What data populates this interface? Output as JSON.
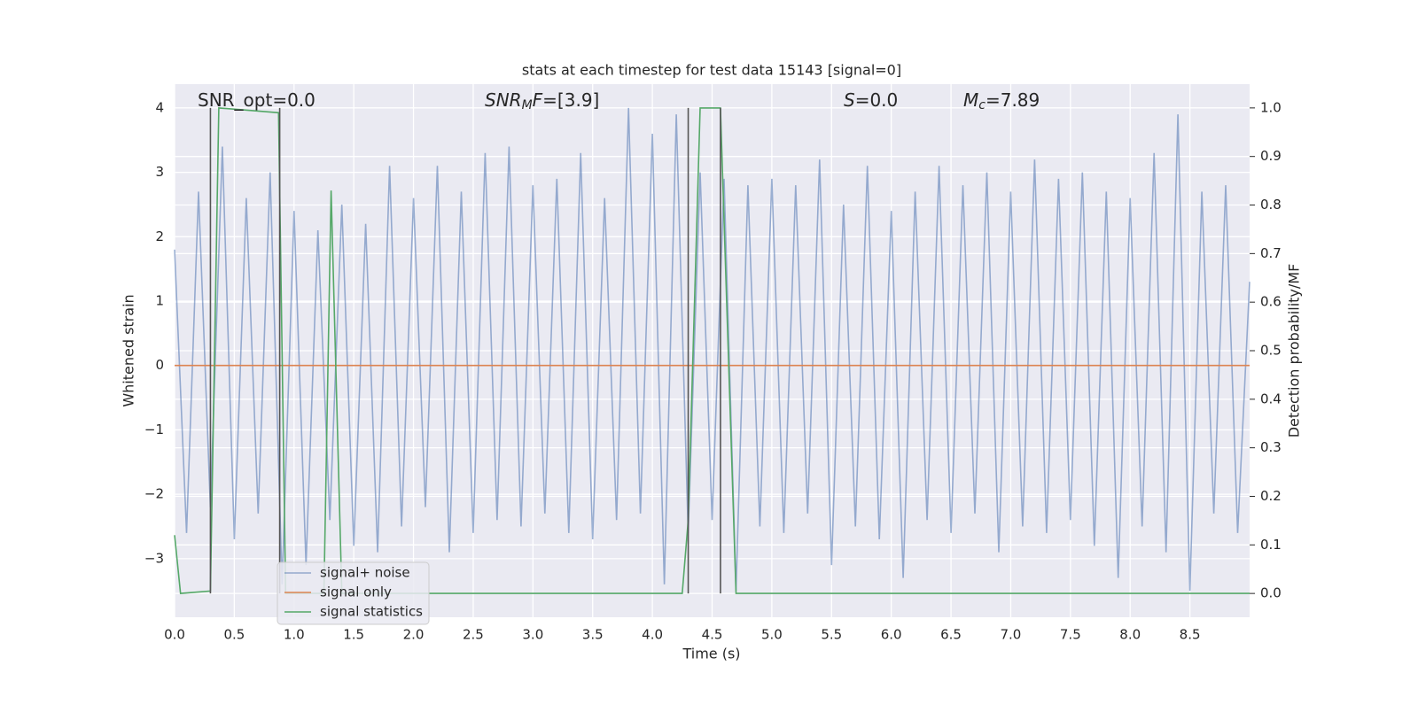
{
  "chart_data": {
    "type": "line",
    "title": "stats at each timestep for test data 15143 [signal=0]",
    "x_label": "Time (s)",
    "y_label": "Whitened strain",
    "y2_label": "Detection probability/MF",
    "xlim": [
      0,
      9.0
    ],
    "ylim": [
      -3.91,
      4.37
    ],
    "y2lim": [
      -0.049,
      1.049
    ],
    "grid": true,
    "legend": "lower left",
    "xticks": [
      {
        "value": 0,
        "label": "0.0"
      },
      0.5,
      {
        "value": 1,
        "label": "1.0"
      },
      1.5,
      {
        "value": 2,
        "label": "2.0"
      },
      2.5,
      {
        "value": 3,
        "label": "3.0"
      },
      3.5,
      {
        "value": 4,
        "label": "4.0"
      },
      4.5,
      {
        "value": 5,
        "label": "5.0"
      },
      5.5,
      {
        "value": 6,
        "label": "6.0"
      },
      6.5,
      {
        "value": 7,
        "label": "7.0"
      },
      7.5,
      {
        "value": 8,
        "label": "8.0"
      },
      8.5
    ],
    "yticks": [
      {
        "value": -3,
        "label": "−3"
      },
      {
        "value": -2,
        "label": "−2"
      },
      {
        "value": -1,
        "label": "−1"
      },
      0,
      1,
      2,
      3,
      4
    ],
    "y2ticks": [
      {
        "value": 0,
        "label": "0.0"
      },
      0.1,
      0.2,
      0.3,
      0.4,
      0.5,
      0.6,
      0.7,
      0.8,
      0.9,
      {
        "value": 1,
        "label": "1.0"
      }
    ],
    "annotations": [
      [
        {
          "text": "SNR_opt=0.0",
          "style": "normal"
        }
      ],
      [
        {
          "text": "SNR",
          "style": "italic"
        },
        {
          "text": "M",
          "style": "sub"
        },
        {
          "text": "F",
          "style": "italic"
        },
        {
          "text": "=[3.9]",
          "style": "normal"
        }
      ],
      [
        {
          "text": "S",
          "style": "italic"
        },
        {
          "text": "=0.0",
          "style": "normal"
        }
      ],
      [
        {
          "text": "M",
          "style": "italic"
        },
        {
          "text": "c",
          "style": "sub"
        },
        {
          "text": "=7.89",
          "style": "normal"
        }
      ]
    ],
    "vlines": [
      0.3,
      0.88,
      4.3,
      4.57
    ],
    "vline_color": "#555555",
    "series": [
      {
        "name": "signal+ noise",
        "color": "#4c72b0",
        "opacity": 0.55,
        "x": [
          0,
          0.1,
          0.2,
          0.3,
          0.4,
          0.5,
          0.6,
          0.7,
          0.8,
          0.9,
          1,
          1.1,
          1.2,
          1.3,
          1.4,
          1.5,
          1.6,
          1.7,
          1.8,
          1.9,
          2,
          2.1,
          2.2,
          2.3,
          2.4,
          2.5,
          2.6,
          2.7,
          2.8,
          2.9,
          3,
          3.1,
          3.2,
          3.3,
          3.4,
          3.5,
          3.6,
          3.7,
          3.8,
          3.9,
          4,
          4.1,
          4.2,
          4.3,
          4.4,
          4.5,
          4.6,
          4.7,
          4.8,
          4.9,
          5,
          5.1,
          5.2,
          5.3,
          5.4,
          5.5,
          5.6,
          5.7,
          5.8,
          5.9,
          6,
          6.1,
          6.2,
          6.3,
          6.4,
          6.5,
          6.6,
          6.7,
          6.8,
          6.9,
          7,
          7.1,
          7.2,
          7.3,
          7.4,
          7.5,
          7.6,
          7.7,
          7.8,
          7.9,
          8,
          8.1,
          8.2,
          8.3,
          8.4,
          8.5,
          8.6,
          8.7,
          8.8,
          8.9,
          9.0
        ],
        "values": [
          1.8,
          -2.6,
          2.7,
          -2.2,
          3.4,
          -2.7,
          2.6,
          -2.3,
          3.0,
          -3.4,
          2.4,
          -3.1,
          2.1,
          -2.4,
          2.5,
          -2.8,
          2.2,
          -2.9,
          3.1,
          -2.5,
          2.6,
          -2.2,
          3.1,
          -2.9,
          2.7,
          -2.6,
          3.3,
          -2.4,
          3.4,
          -2.5,
          2.8,
          -2.3,
          2.9,
          -2.6,
          3.3,
          -2.7,
          2.6,
          -2.4,
          4.0,
          -2.3,
          3.6,
          -3.4,
          3.9,
          -2.6,
          3.0,
          -2.4,
          2.9,
          -3.5,
          2.8,
          -2.5,
          2.9,
          -2.6,
          2.8,
          -2.3,
          3.2,
          -3.1,
          2.5,
          -2.5,
          3.1,
          -2.7,
          2.4,
          -3.3,
          2.7,
          -2.4,
          3.1,
          -2.6,
          2.8,
          -2.3,
          3.0,
          -2.9,
          2.7,
          -2.5,
          3.2,
          -2.6,
          2.9,
          -2.4,
          3.0,
          -2.8,
          2.7,
          -3.3,
          2.6,
          -2.5,
          3.3,
          -2.9,
          3.9,
          -3.5,
          2.7,
          -2.3,
          2.8,
          -2.6,
          1.3
        ]
      },
      {
        "name": "signal only",
        "color": "#dd8452",
        "opacity": 1,
        "x": [
          0,
          9.0
        ],
        "values": [
          0,
          0
        ]
      },
      {
        "name": "signal statistics",
        "color": "#55a868",
        "opacity": 1,
        "axis": "y2",
        "x": [
          0,
          0.05,
          0.3,
          0.37,
          0.87,
          0.93,
          1.25,
          1.31,
          1.4,
          4.25,
          4.3,
          4.4,
          4.57,
          4.7,
          9.0
        ],
        "values": [
          0.12,
          0,
          0.005,
          1.0,
          0.99,
          0,
          0,
          0.83,
          0,
          0,
          0.15,
          1.0,
          1.0,
          0,
          0
        ]
      }
    ]
  }
}
